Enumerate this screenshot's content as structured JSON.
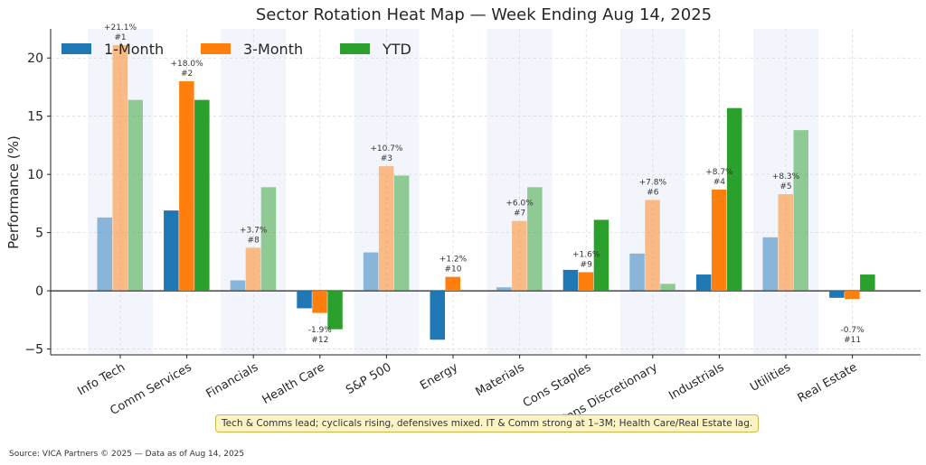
{
  "chart_data": {
    "type": "bar",
    "title": "Sector Rotation Heat Map — Week Ending Aug 14, 2025",
    "ylabel": "Performance (%)",
    "xlabel": "",
    "ylim": [
      -5.5,
      22.5
    ],
    "yticks": [
      -5,
      0,
      5,
      10,
      15,
      20
    ],
    "ytick_labels": [
      "−5",
      "0",
      "5",
      "10",
      "15",
      "20"
    ],
    "grid": true,
    "legend_position": "top-left",
    "categories": [
      "Info Tech",
      "Comm Services",
      "Financials",
      "Health Care",
      "S&P 500",
      "Energy",
      "Materials",
      "Cons Staples",
      "Cons Discretionary",
      "Industrials",
      "Utilities",
      "Real Estate"
    ],
    "shaded_categories": [
      0,
      2,
      4,
      6,
      8,
      10
    ],
    "series": [
      {
        "name": "1-Month",
        "color": "#1f77b4",
        "values": [
          6.3,
          6.9,
          0.9,
          -1.5,
          3.3,
          -4.2,
          0.3,
          1.8,
          3.2,
          1.4,
          4.6,
          -0.6
        ]
      },
      {
        "name": "3-Month",
        "color": "#ff7f0e",
        "values": [
          21.1,
          18.0,
          3.7,
          -1.9,
          10.7,
          1.2,
          6.0,
          1.6,
          7.8,
          8.7,
          8.3,
          -0.7
        ]
      },
      {
        "name": "YTD",
        "color": "#2ca02c",
        "values": [
          16.4,
          16.4,
          8.9,
          -3.3,
          9.9,
          0.0,
          8.9,
          6.1,
          0.6,
          15.7,
          13.8,
          1.4
        ]
      }
    ],
    "emphasis": [
      false,
      true,
      false,
      true,
      false,
      true,
      false,
      true,
      false,
      true,
      false,
      true
    ],
    "annotations": [
      {
        "value": "+21.1%",
        "rank": "#1"
      },
      {
        "value": "+18.0%",
        "rank": "#2"
      },
      {
        "value": "+3.7%",
        "rank": "#8"
      },
      {
        "value": "-1.9%",
        "rank": "#12"
      },
      {
        "value": "+10.7%",
        "rank": "#3"
      },
      {
        "value": "+1.2%",
        "rank": "#10"
      },
      {
        "value": "+6.0%",
        "rank": "#7"
      },
      {
        "value": "+1.6%",
        "rank": "#9"
      },
      {
        "value": "+7.8%",
        "rank": "#6"
      },
      {
        "value": "+8.7%",
        "rank": "#4"
      },
      {
        "value": "+8.3%",
        "rank": "#5"
      },
      {
        "value": "-0.7%",
        "rank": "#11"
      }
    ]
  },
  "note": "Tech & Comms lead; cyclicals rising, defensives mixed. IT & Comm strong at 1–3M; Health Care/Real Estate lag.",
  "footer": "Source: VICA Partners © 2025 — Data as of Aug 14, 2025"
}
